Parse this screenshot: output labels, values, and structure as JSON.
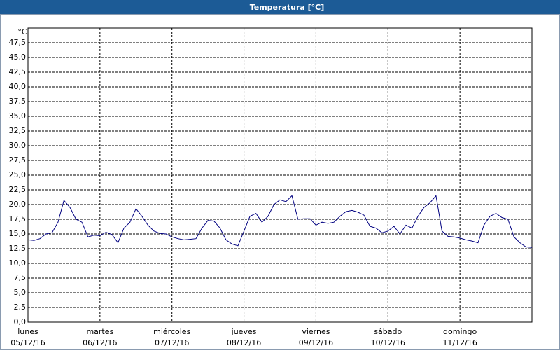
{
  "chart_data": {
    "type": "line",
    "title": "Temperatura [°C]",
    "y_unit": "°C",
    "xlim": [
      0,
      168
    ],
    "ylim": [
      0,
      50
    ],
    "xticks": [
      {
        "value": 0,
        "label": "lunes",
        "sublabel": "05/12/16"
      },
      {
        "value": 24,
        "label": "martes",
        "sublabel": "06/12/16"
      },
      {
        "value": 48,
        "label": "miércoles",
        "sublabel": "07/12/16"
      },
      {
        "value": 72,
        "label": "jueves",
        "sublabel": "08/12/16"
      },
      {
        "value": 96,
        "label": "viernes",
        "sublabel": "09/12/16"
      },
      {
        "value": 120,
        "label": "sábado",
        "sublabel": "10/12/16"
      },
      {
        "value": 144,
        "label": "domingo",
        "sublabel": "11/12/16"
      }
    ],
    "yticks": [
      {
        "value": 0,
        "label": "0,0"
      },
      {
        "value": 2.5,
        "label": "2,5"
      },
      {
        "value": 5,
        "label": "5,0"
      },
      {
        "value": 7.5,
        "label": "7,5"
      },
      {
        "value": 10,
        "label": "10,0"
      },
      {
        "value": 12.5,
        "label": "12,5"
      },
      {
        "value": 15,
        "label": "15,0"
      },
      {
        "value": 17.5,
        "label": "17,5"
      },
      {
        "value": 20,
        "label": "20,0"
      },
      {
        "value": 22.5,
        "label": "22,5"
      },
      {
        "value": 25,
        "label": "25,0"
      },
      {
        "value": 27.5,
        "label": "27,5"
      },
      {
        "value": 30,
        "label": "30,0"
      },
      {
        "value": 32.5,
        "label": "32,5"
      },
      {
        "value": 35,
        "label": "35,0"
      },
      {
        "value": 37.5,
        "label": "37,5"
      },
      {
        "value": 40,
        "label": "40,0"
      },
      {
        "value": 42.5,
        "label": "42,5"
      },
      {
        "value": 45,
        "label": "45,0"
      },
      {
        "value": 47.5,
        "label": "47,5"
      }
    ],
    "grid": true,
    "series": [
      {
        "color": "#000080",
        "x": [
          0,
          2,
          4,
          6,
          8,
          10,
          12,
          14,
          16,
          18,
          20,
          22,
          24,
          26,
          28,
          30,
          32,
          34,
          36,
          38,
          40,
          42,
          44,
          46,
          48,
          50,
          52,
          54,
          56,
          58,
          60,
          62,
          64,
          66,
          68,
          70,
          72,
          74,
          76,
          78,
          80,
          82,
          84,
          86,
          88,
          90,
          92,
          94,
          96,
          98,
          100,
          102,
          104,
          106,
          108,
          110,
          112,
          114,
          116,
          118,
          120,
          122,
          124,
          126,
          128,
          130,
          132,
          134,
          136,
          138,
          140,
          142,
          144,
          146,
          148,
          150,
          152,
          154,
          156,
          158,
          160,
          162,
          164,
          166,
          168
        ],
        "values": [
          14.0,
          13.9,
          14.2,
          15.0,
          15.2,
          17.0,
          20.7,
          19.5,
          17.5,
          17.0,
          14.5,
          14.8,
          14.7,
          15.3,
          14.9,
          13.5,
          16.0,
          17.0,
          19.3,
          18.0,
          16.5,
          15.5,
          15.1,
          15.0,
          14.5,
          14.2,
          14.0,
          14.1,
          14.2,
          16.0,
          17.3,
          17.2,
          16.0,
          14.0,
          13.3,
          13.0,
          15.5,
          18.0,
          18.5,
          17.0,
          18.0,
          20.0,
          20.8,
          20.5,
          21.5,
          17.5,
          17.6,
          17.6,
          16.5,
          17.0,
          16.8,
          17.0,
          18.0,
          18.8,
          19.0,
          18.7,
          18.2,
          16.3,
          16.0,
          15.2,
          15.5,
          16.3,
          15.0,
          16.5,
          16.0,
          18.0,
          19.5,
          20.3,
          21.5,
          15.5,
          14.6,
          14.5,
          14.3,
          14.0,
          13.8,
          13.5,
          16.5,
          18.0,
          18.5,
          17.8,
          17.5,
          14.5,
          13.5,
          12.8,
          12.7
        ]
      }
    ]
  }
}
